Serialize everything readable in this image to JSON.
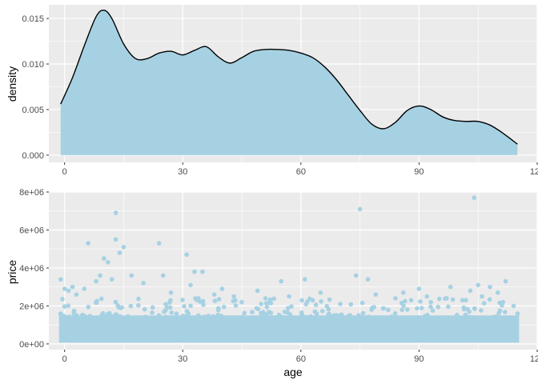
{
  "chart_data": [
    {
      "type": "area",
      "xlabel": "",
      "ylabel": "density",
      "xlim": [
        -4,
        120
      ],
      "ylim": [
        -0.0008,
        0.0165
      ],
      "x_ticks": [
        0,
        30,
        60,
        90,
        120
      ],
      "x_tick_labels": [
        "0",
        "30",
        "60",
        "90",
        "120"
      ],
      "y_ticks": [
        0,
        0.005,
        0.01,
        0.015
      ],
      "y_tick_labels": [
        "0.000",
        "0.005",
        "0.010",
        "0.015"
      ],
      "grid": true,
      "fill_color": "#a6d1e3",
      "line_color": "#000000",
      "panel_color": "#ebebeb",
      "series": [
        {
          "x": [
            -1,
            2,
            5,
            8,
            10,
            12,
            15,
            18,
            21,
            24,
            27,
            30,
            33,
            36,
            39,
            42,
            45,
            48,
            51,
            54,
            57,
            60,
            63,
            66,
            69,
            72,
            75,
            78,
            81,
            84,
            87,
            90,
            93,
            96,
            99,
            102,
            105,
            108,
            111,
            115
          ],
          "y": [
            0.0056,
            0.0085,
            0.012,
            0.0152,
            0.0159,
            0.015,
            0.0122,
            0.0106,
            0.0106,
            0.0112,
            0.0114,
            0.011,
            0.0115,
            0.0119,
            0.0108,
            0.0101,
            0.0107,
            0.0114,
            0.0116,
            0.0116,
            0.0115,
            0.0112,
            0.0107,
            0.0097,
            0.0083,
            0.0066,
            0.0049,
            0.0034,
            0.0029,
            0.0036,
            0.0049,
            0.0054,
            0.005,
            0.0042,
            0.0038,
            0.0037,
            0.0037,
            0.0033,
            0.0025,
            0.0012
          ]
        }
      ]
    },
    {
      "type": "scatter",
      "xlabel": "age",
      "ylabel": "price",
      "xlim": [
        -4,
        120
      ],
      "ylim": [
        -300000,
        8000000
      ],
      "x_ticks": [
        0,
        30,
        60,
        90,
        120
      ],
      "x_tick_labels": [
        "0",
        "30",
        "60",
        "90",
        "120"
      ],
      "y_ticks": [
        0,
        2000000,
        4000000,
        6000000,
        8000000
      ],
      "y_tick_labels": [
        "0e+00",
        "2e+06",
        "4e+06",
        "6e+06",
        "8e+06"
      ],
      "grid": true,
      "point_color": "#a6d1e3",
      "panel_color": "#ebebeb",
      "dense_band": {
        "x_range": [
          -1,
          115
        ],
        "y_range": [
          150000,
          1500000
        ]
      },
      "series": [
        {
          "x": [
            -1,
            0,
            1,
            2,
            3,
            5,
            6,
            8,
            9,
            10,
            11,
            12,
            13,
            13,
            14,
            15,
            17,
            20,
            24,
            25,
            27,
            31,
            32,
            33,
            34,
            35,
            38,
            40,
            43,
            45,
            49,
            51,
            55,
            57,
            61,
            63,
            65,
            70,
            74,
            75,
            77,
            79,
            84,
            86,
            88,
            90,
            92,
            93,
            97,
            98,
            101,
            103,
            104,
            105,
            106,
            108,
            110,
            112,
            114,
            115
          ],
          "y": [
            3400000,
            2900000,
            2800000,
            3000000,
            2600000,
            2900000,
            5300000,
            3300000,
            3600000,
            4500000,
            4300000,
            3400000,
            5500000,
            6900000,
            4800000,
            5100000,
            3600000,
            3200000,
            5300000,
            3600000,
            2700000,
            4700000,
            3100000,
            3800000,
            2400000,
            3800000,
            2600000,
            2900000,
            2500000,
            2200000,
            2800000,
            2400000,
            3300000,
            2500000,
            3400000,
            2300000,
            2700000,
            2100000,
            3600000,
            7100000,
            3400000,
            2600000,
            2400000,
            2700000,
            2300000,
            2900000,
            2500000,
            2200000,
            2400000,
            3000000,
            2300000,
            2800000,
            7700000,
            3100000,
            2500000,
            3000000,
            2700000,
            3300000,
            2000000,
            1600000
          ]
        }
      ]
    }
  ]
}
